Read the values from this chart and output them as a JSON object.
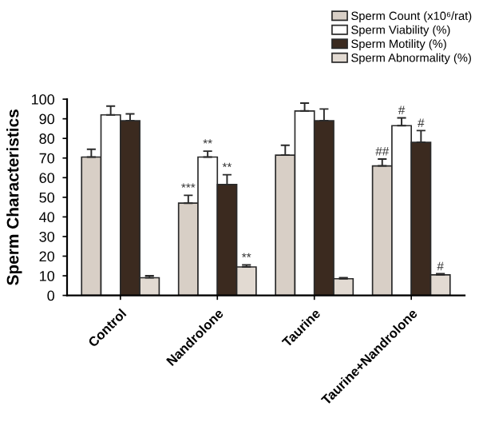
{
  "chart_data": {
    "type": "bar",
    "ylabel": "Sperm Characteristics",
    "categories": [
      "Control",
      "Nandrolone",
      "Taurine",
      "Taurine+Nandrolone"
    ],
    "series": [
      {
        "name": "Sperm Count (x10⁶/rat)",
        "color": "#d8cfc6",
        "values": [
          70.5,
          47,
          71.5,
          66
        ],
        "errors": [
          [
            70.5,
            74.5
          ],
          [
            47,
            51
          ],
          [
            71.5,
            76.5
          ],
          [
            66,
            69.5
          ]
        ],
        "value_labels": [
          null,
          "***",
          null,
          "##"
        ]
      },
      {
        "name": "Sperm Viability (%)",
        "color": "#ffffff",
        "values": [
          92,
          70.5,
          94,
          86.5
        ],
        "errors": [
          [
            92,
            96.5
          ],
          [
            70.5,
            73.5
          ],
          [
            94,
            98
          ],
          [
            86.5,
            90.5
          ]
        ],
        "value_labels": [
          null,
          "**",
          null,
          "#"
        ]
      },
      {
        "name": "Sperm Motility (%)",
        "color": "#3b2a1f",
        "values": [
          89,
          56.5,
          89,
          78
        ],
        "errors": [
          [
            89,
            92.5
          ],
          [
            56.5,
            61.5
          ],
          [
            89,
            95
          ],
          [
            78,
            84
          ]
        ],
        "value_labels": [
          null,
          "**",
          null,
          "#"
        ]
      },
      {
        "name": "Sperm Abnormality (%)",
        "color": "#e2dad2",
        "values": [
          9,
          14.5,
          8.5,
          10.5
        ],
        "errors": [
          [
            9,
            10
          ],
          [
            14.5,
            15.5
          ],
          [
            8.5,
            9
          ],
          [
            10.5,
            11
          ]
        ],
        "value_labels": [
          null,
          "**",
          null,
          "#"
        ]
      }
    ],
    "ylim": [
      0,
      100
    ],
    "yticks": [
      0,
      10,
      20,
      30,
      40,
      50,
      60,
      70,
      80,
      90,
      100
    ],
    "grid": false,
    "legend": "top right"
  }
}
